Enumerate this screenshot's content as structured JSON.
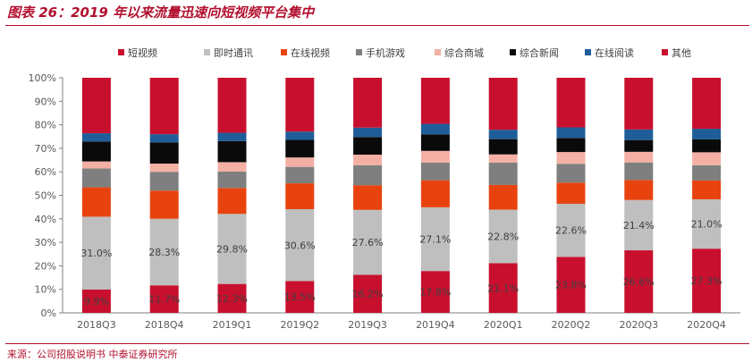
{
  "title": "图表 26：2019 年以来流量迅速向短视频平台集中",
  "source": "来源：公司招股说明书  中泰证券研究所",
  "chart_data": {
    "type": "bar",
    "stacked": true,
    "percent": true,
    "categories": [
      "2018Q3",
      "2018Q4",
      "2019Q1",
      "2019Q2",
      "2019Q3",
      "2019Q4",
      "2020Q1",
      "2020Q2",
      "2020Q3",
      "2020Q4"
    ],
    "ylim": [
      0,
      100
    ],
    "yticks": [
      "0%",
      "10%",
      "20%",
      "30%",
      "40%",
      "50%",
      "60%",
      "70%",
      "80%",
      "90%",
      "100%"
    ],
    "legend_position": "top",
    "series": [
      {
        "name": "短视频",
        "color": "#c8102e",
        "values": [
          9.9,
          11.7,
          12.3,
          13.5,
          16.2,
          17.8,
          21.1,
          23.8,
          26.6,
          27.3
        ],
        "labels": [
          "9.9%",
          "11.7%",
          "12.3%",
          "13.5%",
          "16.2%",
          "17.8%",
          "21.1%",
          "23.8%",
          "26.6%",
          "27.3%"
        ]
      },
      {
        "name": "即时通讯",
        "color": "#bfbfbf",
        "values": [
          31.0,
          28.3,
          29.8,
          30.6,
          27.6,
          27.1,
          22.8,
          22.6,
          21.4,
          21.0
        ],
        "labels": [
          "31.0%",
          "28.3%",
          "29.8%",
          "30.6%",
          "27.6%",
          "27.1%",
          "22.8%",
          "22.6%",
          "21.4%",
          "21.0%"
        ]
      },
      {
        "name": "在线视频",
        "color": "#e8430e",
        "values": [
          12.5,
          12.0,
          11.0,
          11.0,
          10.5,
          11.5,
          10.5,
          9.0,
          8.5,
          8.0
        ]
      },
      {
        "name": "手机游戏",
        "color": "#7f7f7f",
        "values": [
          8.0,
          8.0,
          7.0,
          7.0,
          8.5,
          7.5,
          9.5,
          8.0,
          7.5,
          6.5
        ]
      },
      {
        "name": "综合商城",
        "color": "#f4b0a4",
        "values": [
          3.0,
          3.5,
          4.0,
          4.0,
          4.5,
          5.0,
          3.5,
          5.0,
          4.5,
          5.5
        ]
      },
      {
        "name": "综合新闻",
        "color": "#0a0a0a",
        "values": [
          8.5,
          9.0,
          9.0,
          7.5,
          7.5,
          7.0,
          6.5,
          6.0,
          5.0,
          5.5
        ]
      },
      {
        "name": "在线阅读",
        "color": "#1f5d99",
        "values": [
          3.5,
          3.5,
          3.5,
          3.5,
          4.0,
          4.5,
          4.0,
          4.5,
          4.5,
          4.5
        ]
      },
      {
        "name": "其他",
        "color": "#c8102e",
        "values": [
          23.6,
          24.0,
          23.4,
          22.9,
          21.2,
          19.6,
          22.1,
          21.1,
          22.0,
          21.7
        ]
      }
    ]
  }
}
